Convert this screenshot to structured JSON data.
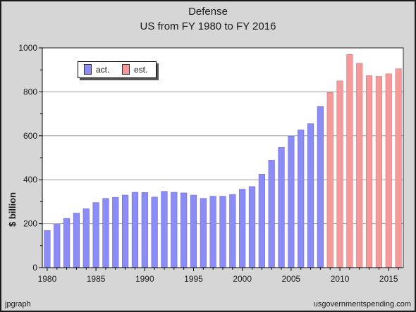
{
  "chart_data": {
    "type": "bar",
    "title": "Defense",
    "subtitle": "US from FY 1980 to FY 2016",
    "xlabel": "",
    "ylabel": "$ billion",
    "ylim": [
      0,
      1000
    ],
    "yticks": [
      0,
      200,
      400,
      600,
      800,
      1000
    ],
    "xticks": [
      1980,
      1985,
      1990,
      1995,
      2000,
      2005,
      2010,
      2015
    ],
    "grid": true,
    "legend_position": "top-left",
    "series": [
      {
        "name": "act.",
        "color": "#8c8cf7",
        "x": [
          1980,
          1981,
          1982,
          1983,
          1984,
          1985,
          1986,
          1987,
          1988,
          1989,
          1990,
          1991,
          1992,
          1993,
          1994,
          1995,
          1996,
          1997,
          1998,
          1999,
          2000,
          2001,
          2002,
          2003,
          2004,
          2005,
          2006,
          2007,
          2008
        ],
        "values": [
          169,
          197,
          224,
          248,
          268,
          296,
          315,
          320,
          330,
          343,
          342,
          321,
          347,
          343,
          340,
          330,
          315,
          325,
          325,
          333,
          357,
          369,
          425,
          489,
          547,
          598,
          627,
          655,
          733
        ]
      },
      {
        "name": "est.",
        "color": "#f59a9a",
        "x": [
          2009,
          2010,
          2011,
          2012,
          2013,
          2014,
          2015,
          2016
        ],
        "values": [
          797,
          850,
          970,
          930,
          874,
          870,
          882,
          905
        ]
      }
    ]
  },
  "footer": {
    "left": "jpgraph",
    "right": "usgovernmentspending.com"
  }
}
